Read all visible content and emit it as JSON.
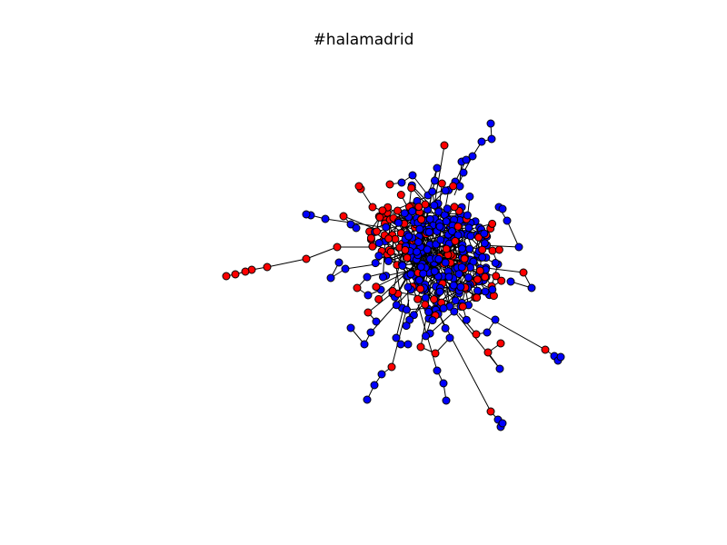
{
  "title": "#halamadrid",
  "colors": {
    "group_a": "#ff0000",
    "group_b": "#0000ff",
    "edge": "#000000",
    "node_outline": "#000000",
    "background": "#ffffff"
  },
  "graph": {
    "type": "network",
    "node_groups": [
      "group_a",
      "group_b"
    ]
  }
}
